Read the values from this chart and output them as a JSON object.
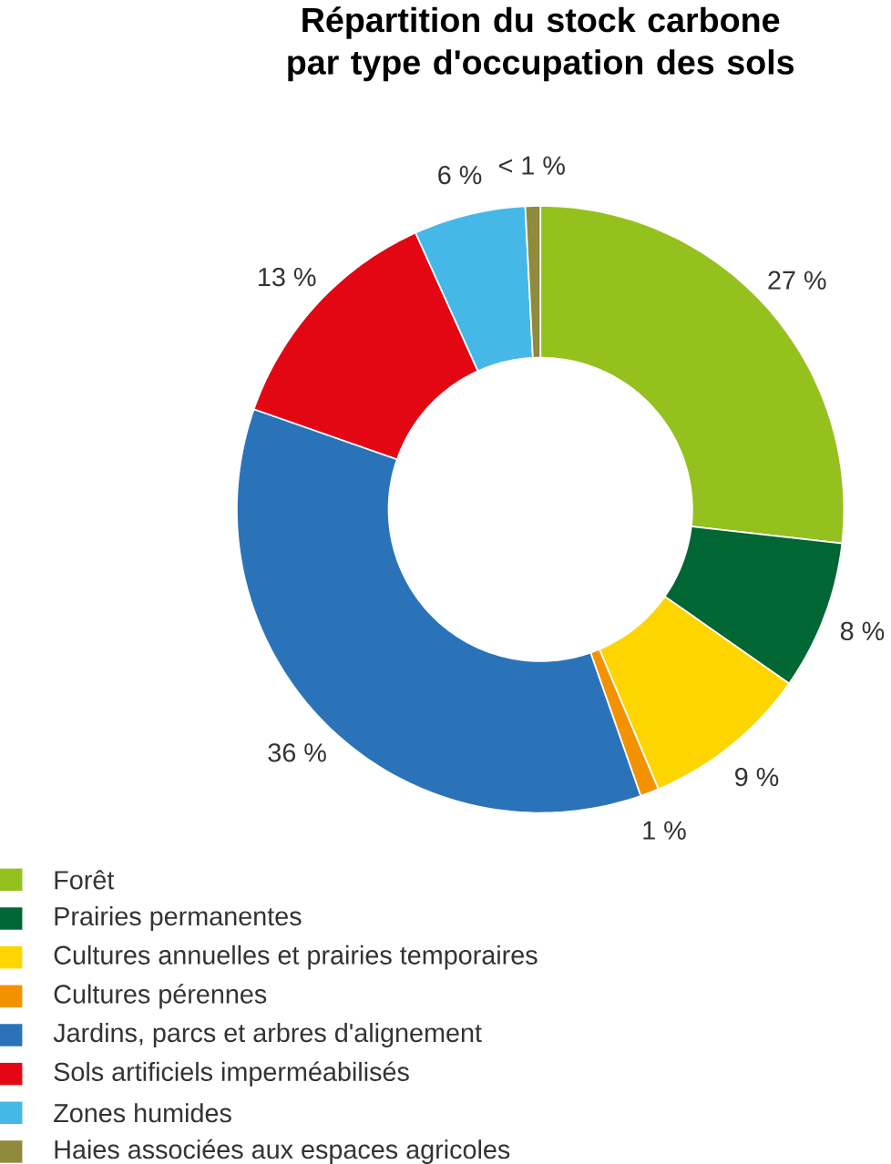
{
  "chart_data": {
    "type": "donut",
    "title": "Répartition du stock carbone par type d'occupation des sols",
    "categories": [
      "Forêt",
      "Prairies permanentes",
      "Cultures annuelles et prairies temporaires",
      "Cultures pérennes",
      "Jardins, parcs et arbres d'alignement",
      "Sols artificiels imperméabilisés",
      "Zones humides",
      "Haies associées aux espaces agricoles"
    ],
    "values": [
      27,
      8,
      9,
      1,
      36,
      13,
      6,
      0.8
    ],
    "value_labels": [
      "27 %",
      "8 %",
      "9 %",
      "1 %",
      "36 %",
      "13 %",
      "6 %",
      "< 1 %"
    ],
    "colors": [
      "#95c11f",
      "#006633",
      "#ffd500",
      "#f39200",
      "#2b73b9",
      "#e30613",
      "#45b8e8",
      "#8f8a3c"
    ],
    "legend": "bottom"
  }
}
